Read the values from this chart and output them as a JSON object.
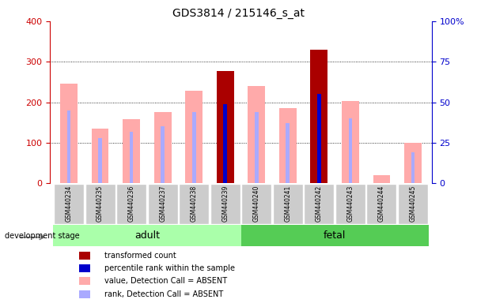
{
  "title": "GDS3814 / 215146_s_at",
  "samples": [
    "GSM440234",
    "GSM440235",
    "GSM440236",
    "GSM440237",
    "GSM440238",
    "GSM440239",
    "GSM440240",
    "GSM440241",
    "GSM440242",
    "GSM440243",
    "GSM440244",
    "GSM440245"
  ],
  "absent_value": [
    245,
    135,
    158,
    175,
    228,
    null,
    240,
    185,
    null,
    203,
    20,
    100
  ],
  "absent_rank_pct": [
    45,
    28,
    32,
    35,
    44,
    null,
    44,
    37,
    null,
    40,
    null,
    19
  ],
  "present_value": [
    null,
    null,
    null,
    null,
    null,
    278,
    null,
    null,
    330,
    null,
    null,
    null
  ],
  "present_rank_pct": [
    null,
    null,
    null,
    null,
    null,
    49,
    null,
    null,
    55,
    null,
    null,
    null
  ],
  "group": [
    "adult",
    "adult",
    "adult",
    "adult",
    "adult",
    "adult",
    "fetal",
    "fetal",
    "fetal",
    "fetal",
    "fetal",
    "fetal"
  ],
  "ylim_left": [
    0,
    400
  ],
  "ylim_right": [
    0,
    100
  ],
  "yticks_left": [
    0,
    100,
    200,
    300,
    400
  ],
  "yticks_right": [
    0,
    25,
    50,
    75,
    100
  ],
  "color_present_value": "#aa0000",
  "color_present_rank": "#0000cc",
  "color_absent_value": "#ffaaaa",
  "color_absent_rank": "#aaaaff",
  "color_adult_bg": "#aaffaa",
  "color_fetal_bg": "#55cc55",
  "color_xticklabel_bg": "#cccccc",
  "left_ylabel_color": "#cc0000",
  "right_ylabel_color": "#0000cc",
  "wide_bar_width": 0.55,
  "narrow_bar_width": 0.12
}
